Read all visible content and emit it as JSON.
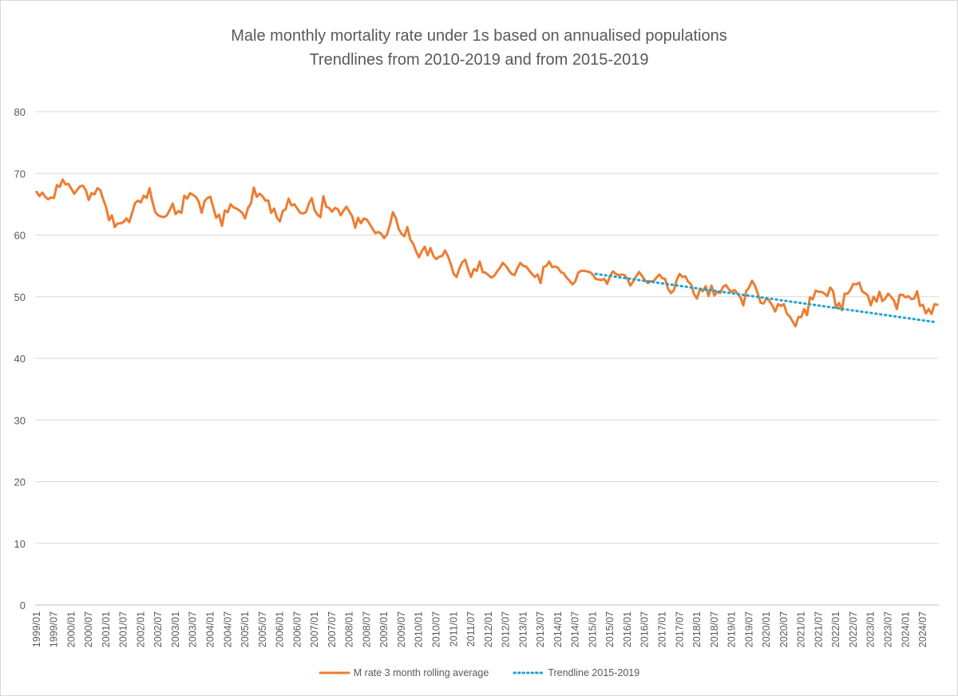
{
  "chart_data": {
    "type": "line",
    "title": "Male monthly mortality rate under 1s based on annualised populations",
    "subtitle": "Trendlines from 2010-2019 and from 2015-2019",
    "xlabel": "",
    "ylabel": "",
    "ylim": [
      0,
      80
    ],
    "yticks": [
      0,
      10,
      20,
      30,
      40,
      50,
      60,
      70,
      80
    ],
    "grid": true,
    "legend_position": "bottom",
    "x_start": "1999/01",
    "x_tick_labels": [
      "1999/01",
      "1999/07",
      "2000/01",
      "2000/07",
      "2001/01",
      "2001/07",
      "2002/01",
      "2002/07",
      "2003/01",
      "2003/07",
      "2004/01",
      "2004/07",
      "2005/01",
      "2005/07",
      "2006/01",
      "2006/07",
      "2007/01",
      "2007/07",
      "2008/01",
      "2008/07",
      "2009/01",
      "2009/07",
      "2010/01",
      "2010/07",
      "2011/01",
      "2011/07",
      "2012/01",
      "2012/07",
      "2013/01",
      "2013/07",
      "2014/01",
      "2014/07",
      "2015/01",
      "2015/07",
      "2016/01",
      "2016/07",
      "2017/01",
      "2017/07",
      "2018/01",
      "2018/07",
      "2019/01",
      "2019/07",
      "2020/01",
      "2020/07",
      "2021/01",
      "2021/07",
      "2022/01",
      "2022/07",
      "2023/01",
      "2023/07",
      "2024/01",
      "2024/07"
    ],
    "series": [
      {
        "name": "M rate 3 month rolling average",
        "color": "#ed7d31",
        "style": "solid",
        "values": [
          67.0,
          66.3,
          66.9,
          66.2,
          65.8,
          66.1,
          66.0,
          68.1,
          67.8,
          69.0,
          68.2,
          68.3,
          67.5,
          66.7,
          67.3,
          67.9,
          68.0,
          67.3,
          65.7,
          66.8,
          66.6,
          67.6,
          67.3,
          65.8,
          64.5,
          62.4,
          63.2,
          61.3,
          61.9,
          61.9,
          62.1,
          62.7,
          62.1,
          63.6,
          65.2,
          65.6,
          65.3,
          66.4,
          66.0,
          67.6,
          65.4,
          63.7,
          63.2,
          63.0,
          62.9,
          63.2,
          64.1,
          65.1,
          63.4,
          63.9,
          63.6,
          66.4,
          65.9,
          66.8,
          66.5,
          66.2,
          65.4,
          63.6,
          65.5,
          66.0,
          66.2,
          64.5,
          62.8,
          63.3,
          61.5,
          64.0,
          63.7,
          65.0,
          64.5,
          64.3,
          64.0,
          63.6,
          62.7,
          64.4,
          65.1,
          67.7,
          66.2,
          66.7,
          66.3,
          65.6,
          65.6,
          63.6,
          64.3,
          62.8,
          62.2,
          63.9,
          64.2,
          65.9,
          64.8,
          65.0,
          64.3,
          63.6,
          63.5,
          63.7,
          65.1,
          66.0,
          64.0,
          63.3,
          62.9,
          66.3,
          64.6,
          64.4,
          63.8,
          64.4,
          64.2,
          63.2,
          64.0,
          64.6,
          63.8,
          63.0,
          61.2,
          62.8,
          61.9,
          62.7,
          62.5,
          61.8,
          61.0,
          60.3,
          60.5,
          60.2,
          59.5,
          60.1,
          61.7,
          63.7,
          62.8,
          61.0,
          60.2,
          59.8,
          61.3,
          59.3,
          58.6,
          57.4,
          56.4,
          57.4,
          58.1,
          56.7,
          57.9,
          56.6,
          56.1,
          56.5,
          56.6,
          57.5,
          56.6,
          55.3,
          53.7,
          53.2,
          54.6,
          55.6,
          56.0,
          54.4,
          53.2,
          54.5,
          54.2,
          55.7,
          54.0,
          53.9,
          53.5,
          53.1,
          53.4,
          54.1,
          54.7,
          55.5,
          55.0,
          54.3,
          53.7,
          53.5,
          54.6,
          55.5,
          55.0,
          54.9,
          54.3,
          53.7,
          53.2,
          53.6,
          52.2,
          54.8,
          55.0,
          55.7,
          54.8,
          54.9,
          54.7,
          54.0,
          53.8,
          53.1,
          52.6,
          52.0,
          52.5,
          53.9,
          54.2,
          54.2,
          54.1,
          54.0,
          53.6,
          52.9,
          52.8,
          52.7,
          52.9,
          52.1,
          53.4,
          54.1,
          53.7,
          53.5,
          53.6,
          53.5,
          52.9,
          51.8,
          52.5,
          53.3,
          54.0,
          53.4,
          52.7,
          52.2,
          52.5,
          52.5,
          53.1,
          53.6,
          53.0,
          52.9,
          51.3,
          50.6,
          51.0,
          52.7,
          53.7,
          53.2,
          53.3,
          52.4,
          52.0,
          50.4,
          49.7,
          51.2,
          50.9,
          51.7,
          50.1,
          51.8,
          50.2,
          50.8,
          50.6,
          51.6,
          51.9,
          51.2,
          50.8,
          51.1,
          50.5,
          49.9,
          48.6,
          50.9,
          51.5,
          52.6,
          51.8,
          50.5,
          49.0,
          48.9,
          49.8,
          49.3,
          48.6,
          47.6,
          48.8,
          48.5,
          48.8,
          47.3,
          46.8,
          46.0,
          45.2,
          46.7,
          46.7,
          48.0,
          47.0,
          49.9,
          49.6,
          51.0,
          50.8,
          50.8,
          50.5,
          50.1,
          51.5,
          50.9,
          48.2,
          49.0,
          47.8,
          50.5,
          50.5,
          51.1,
          52.1,
          52.0,
          52.3,
          50.9,
          50.6,
          50.2,
          48.6,
          50.0,
          49.2,
          50.8,
          49.3,
          49.7,
          50.5,
          50.0,
          49.4,
          48.0,
          50.3,
          50.3,
          49.9,
          50.1,
          49.6,
          49.7,
          50.9,
          48.5,
          48.7,
          47.3,
          48.0,
          47.2,
          48.8,
          48.7
        ]
      },
      {
        "name": "Trendline 2015-2019",
        "color": "#1fa3d1",
        "style": "dotted",
        "start_index": 193,
        "start_value": 53.7,
        "end_index": 310,
        "end_value": 45.9
      }
    ]
  }
}
